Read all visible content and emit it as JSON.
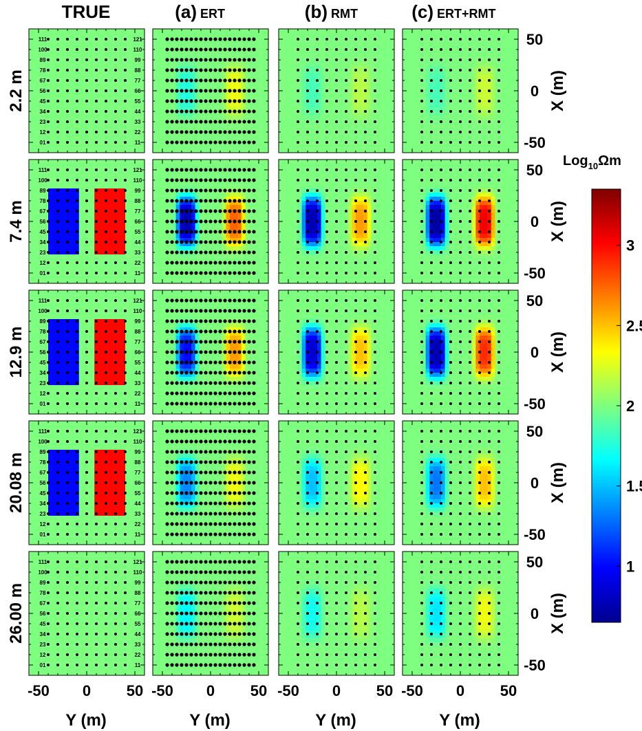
{
  "colors": {
    "colormap": [
      "#00008f",
      "#0000ff",
      "#007fff",
      "#00ffff",
      "#7fff7f",
      "#ffff00",
      "#ff7f00",
      "#ff0000",
      "#7f0000"
    ],
    "background": "#ffffff",
    "text": "#000000"
  },
  "chart_data": {
    "type": "heatmap",
    "layout": "grid of 5 depth rows by 4 model columns",
    "columns": [
      {
        "key": "true",
        "prefix": "",
        "label": "TRUE"
      },
      {
        "key": "ert",
        "prefix": "(a)",
        "label": "ERT"
      },
      {
        "key": "rmt",
        "prefix": "(b)",
        "label": "RMT"
      },
      {
        "key": "joint",
        "prefix": "(c)",
        "label": "ERT+RMT"
      }
    ],
    "rows": [
      "2.2 m",
      "7.4 m",
      "12.9 m",
      "20.08 m",
      "26.00 m"
    ],
    "x_axis": {
      "label": "Y (m)",
      "range": [
        -60,
        60
      ],
      "ticks": [
        -50,
        0,
        50
      ],
      "tick_labels": [
        "-50",
        "0",
        "50"
      ]
    },
    "y_axis": {
      "label": "X (m)",
      "range": [
        -60,
        60
      ],
      "ticks": [
        -50,
        0,
        50
      ],
      "tick_labels": [
        "-50",
        "0",
        "50"
      ]
    },
    "colorbar": {
      "title": "Log",
      "title_sub": "10",
      "title_tail": "Ωm",
      "range": [
        0.65,
        3.35
      ],
      "ticks": [
        1,
        1.5,
        2,
        2.5,
        3
      ],
      "tick_labels": [
        "1",
        "1.5",
        "2",
        "2.5",
        "3"
      ]
    },
    "background_value": 2.0,
    "true_model": {
      "conductor": {
        "value": 1.0,
        "y_range": [
          -40,
          -10
        ],
        "x_range": [
          -30,
          30
        ]
      },
      "resistor": {
        "value": 3.0,
        "y_range": [
          10,
          40
        ],
        "x_range": [
          -30,
          30
        ]
      },
      "present_in_rows": [
        "7.4 m",
        "12.9 m",
        "20.08 m"
      ]
    },
    "station_labels": {
      "left": [
        "111",
        "100",
        "89",
        "78",
        "67",
        "56",
        "45",
        "34",
        "23",
        "12",
        "01"
      ],
      "right": [
        "121",
        "110",
        "99",
        "88",
        "77",
        "66",
        "55",
        "44",
        "33",
        "22",
        "11"
      ],
      "x_positions": [
        50,
        40,
        30,
        20,
        10,
        0,
        -10,
        -20,
        -30,
        -40,
        -50
      ]
    },
    "anomalies": {
      "ert": [
        {
          "depth": "2.2 m",
          "conductor": 1.75,
          "resistor": 2.3
        },
        {
          "depth": "7.4 m",
          "conductor": 0.75,
          "resistor": 2.75
        },
        {
          "depth": "12.9 m",
          "conductor": 1.0,
          "resistor": 2.6
        },
        {
          "depth": "20.08 m",
          "conductor": 1.35,
          "resistor": 2.3
        },
        {
          "depth": "26.00 m",
          "conductor": 1.65,
          "resistor": 2.2
        }
      ],
      "rmt": [
        {
          "depth": "2.2 m",
          "conductor": 1.85,
          "resistor": 2.15
        },
        {
          "depth": "7.4 m",
          "conductor": 0.75,
          "resistor": 2.6
        },
        {
          "depth": "12.9 m",
          "conductor": 0.85,
          "resistor": 2.5
        },
        {
          "depth": "20.08 m",
          "conductor": 1.5,
          "resistor": 2.35
        },
        {
          "depth": "26.00 m",
          "conductor": 1.7,
          "resistor": 2.15
        }
      ],
      "joint": [
        {
          "depth": "2.2 m",
          "conductor": 1.85,
          "resistor": 2.2
        },
        {
          "depth": "7.4 m",
          "conductor": 0.7,
          "resistor": 3.05
        },
        {
          "depth": "12.9 m",
          "conductor": 0.75,
          "resistor": 2.9
        },
        {
          "depth": "20.08 m",
          "conductor": 1.3,
          "resistor": 2.5
        },
        {
          "depth": "26.00 m",
          "conductor": 1.6,
          "resistor": 2.3
        }
      ]
    },
    "station_grid": {
      "true_y": [
        -40,
        -30,
        -20,
        -10,
        0,
        10,
        20,
        30,
        40
      ],
      "x": [
        -50,
        -40,
        -30,
        -20,
        -10,
        0,
        10,
        20,
        30,
        40,
        50
      ],
      "ert_y": [
        -45,
        -40,
        -35,
        -30,
        -25,
        -20,
        -15,
        -10,
        -5,
        0,
        5,
        10,
        15,
        20,
        25,
        30,
        35,
        40,
        45
      ],
      "rmt_y": [
        -40,
        -30,
        -20,
        -10,
        0,
        10,
        20,
        30,
        40
      ]
    }
  }
}
